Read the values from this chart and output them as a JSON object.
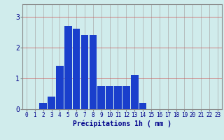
{
  "values": [
    0,
    0,
    0.2,
    0.4,
    1.4,
    2.7,
    2.6,
    2.4,
    2.4,
    0.75,
    0.75,
    0.75,
    0.75,
    1.1,
    0.2,
    0,
    0,
    0,
    0,
    0,
    0,
    0,
    0,
    0
  ],
  "categories": [
    0,
    1,
    2,
    3,
    4,
    5,
    6,
    7,
    8,
    9,
    10,
    11,
    12,
    13,
    14,
    15,
    16,
    17,
    18,
    19,
    20,
    21,
    22,
    23
  ],
  "xlabel": "Précipitations 1h ( mm )",
  "bar_color": "#1a3fcc",
  "background_color": "#d0ecec",
  "grid_color": "#aaaaaa",
  "grid_color_h": "#cc5555",
  "ylim": [
    0,
    3.4
  ],
  "yticks": [
    0,
    1,
    2,
    3
  ],
  "xlabel_fontsize": 7.0,
  "tick_fontsize": 5.5,
  "tick_color": "#00008b",
  "axis_color": "#888888"
}
